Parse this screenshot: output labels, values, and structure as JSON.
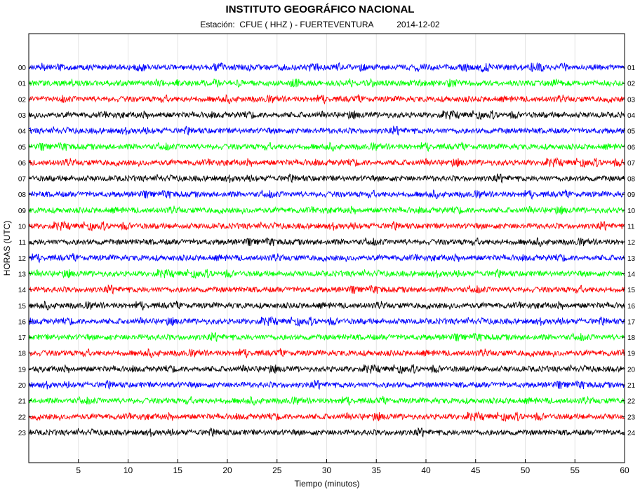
{
  "chart_data": {
    "type": "line",
    "title": "INSTITUTO GEOGRÁFICO NACIONAL",
    "subtitle": {
      "station_prefix": "Estación:",
      "station": "CFUE ( HHZ ) - FUERTEVENTURA",
      "date": "2014-12-02"
    },
    "xlabel": "Tiempo (minutos)",
    "ylabel": "HORAS (UTC)",
    "xlim": [
      0,
      60
    ],
    "x_ticks": [
      5,
      10,
      15,
      20,
      25,
      30,
      35,
      40,
      45,
      50,
      55,
      60
    ],
    "y_ticks_left": [
      "00",
      "01",
      "02",
      "03",
      "04",
      "05",
      "06",
      "07",
      "08",
      "09",
      "10",
      "11",
      "12",
      "13",
      "14",
      "15",
      "16",
      "17",
      "18",
      "19",
      "20",
      "21",
      "22",
      "23"
    ],
    "y_ticks_right": [
      "01",
      "02",
      "03",
      "04",
      "05",
      "06",
      "07",
      "08",
      "09",
      "10",
      "11",
      "12",
      "13",
      "14",
      "15",
      "16",
      "17",
      "18",
      "19",
      "20",
      "21",
      "22",
      "23",
      "24"
    ],
    "grid": "vertical",
    "trace_colors": [
      "#0000ff",
      "#00ff00",
      "#ff0000",
      "#000000"
    ]
  }
}
